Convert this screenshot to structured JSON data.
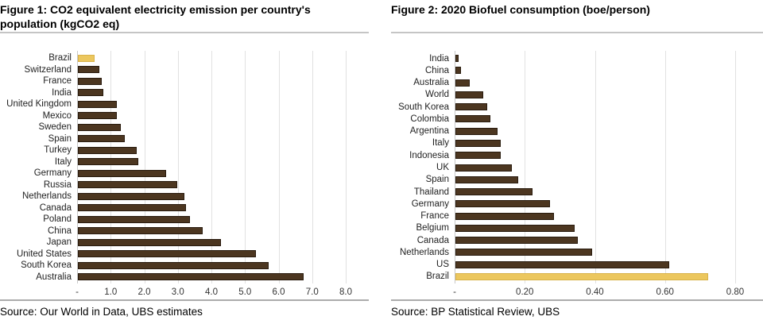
{
  "colors": {
    "bar": "#4C3620",
    "bar_border": "#291B0E",
    "highlight": "#ECC75E",
    "highlight_border": "#D8B24A",
    "gridline": "#E1E1E1",
    "axis_line": "#C9C9C9",
    "title_rule": "#C5C5C5",
    "footer_rule": "#ACACAC"
  },
  "panels": [
    {
      "source": "Source: Our World in Data, UBS estimates"
    },
    {
      "source": "Source: BP Statistical Review, UBS"
    }
  ],
  "chart_data": [
    {
      "type": "bar",
      "orientation": "horizontal",
      "title": "Figure 1: CO2 equivalent electricity emission per country's population (kgCO2 eq)",
      "categories": [
        "Brazil",
        "Switzerland",
        "France",
        "India",
        "United Kingdom",
        "Mexico",
        "Sweden",
        "Spain",
        "Turkey",
        "Italy",
        "Germany",
        "Russia",
        "Netherlands",
        "Canada",
        "Poland",
        "China",
        "Japan",
        "United States",
        "South Korea",
        "Australia"
      ],
      "values": [
        0.5,
        0.63,
        0.72,
        0.75,
        1.15,
        1.15,
        1.27,
        1.4,
        1.74,
        1.8,
        2.63,
        2.97,
        3.17,
        3.23,
        3.33,
        3.72,
        4.26,
        5.31,
        5.69,
        6.72
      ],
      "highlight_category": "Brazil",
      "xlabel": "",
      "ylabel": "",
      "xlim": [
        0,
        8
      ],
      "xtick_labels": [
        "-",
        "1.0",
        "2.0",
        "3.0",
        "4.0",
        "5.0",
        "6.0",
        "7.0",
        "8.0"
      ],
      "grid": true,
      "legend": false
    },
    {
      "type": "bar",
      "orientation": "horizontal",
      "title": "Figure 2: 2020 Biofuel consumption (boe/person)",
      "categories": [
        "India",
        "China",
        "Australia",
        "World",
        "South Korea",
        "Colombia",
        "Argentina",
        "Italy",
        "Indonesia",
        "UK",
        "Spain",
        "Thailand",
        "Germany",
        "France",
        "Belgium",
        "Canada",
        "Netherlands",
        "US",
        "Brazil"
      ],
      "values": [
        0.01,
        0.015,
        0.04,
        0.08,
        0.09,
        0.1,
        0.12,
        0.13,
        0.13,
        0.16,
        0.18,
        0.22,
        0.27,
        0.28,
        0.34,
        0.35,
        0.39,
        0.61,
        0.72
      ],
      "highlight_category": "Brazil",
      "xlabel": "",
      "ylabel": "",
      "xlim": [
        0,
        0.8
      ],
      "xtick_labels": [
        "-",
        "0.20",
        "0.40",
        "0.60",
        "0.80"
      ],
      "grid": true,
      "legend": false
    }
  ]
}
